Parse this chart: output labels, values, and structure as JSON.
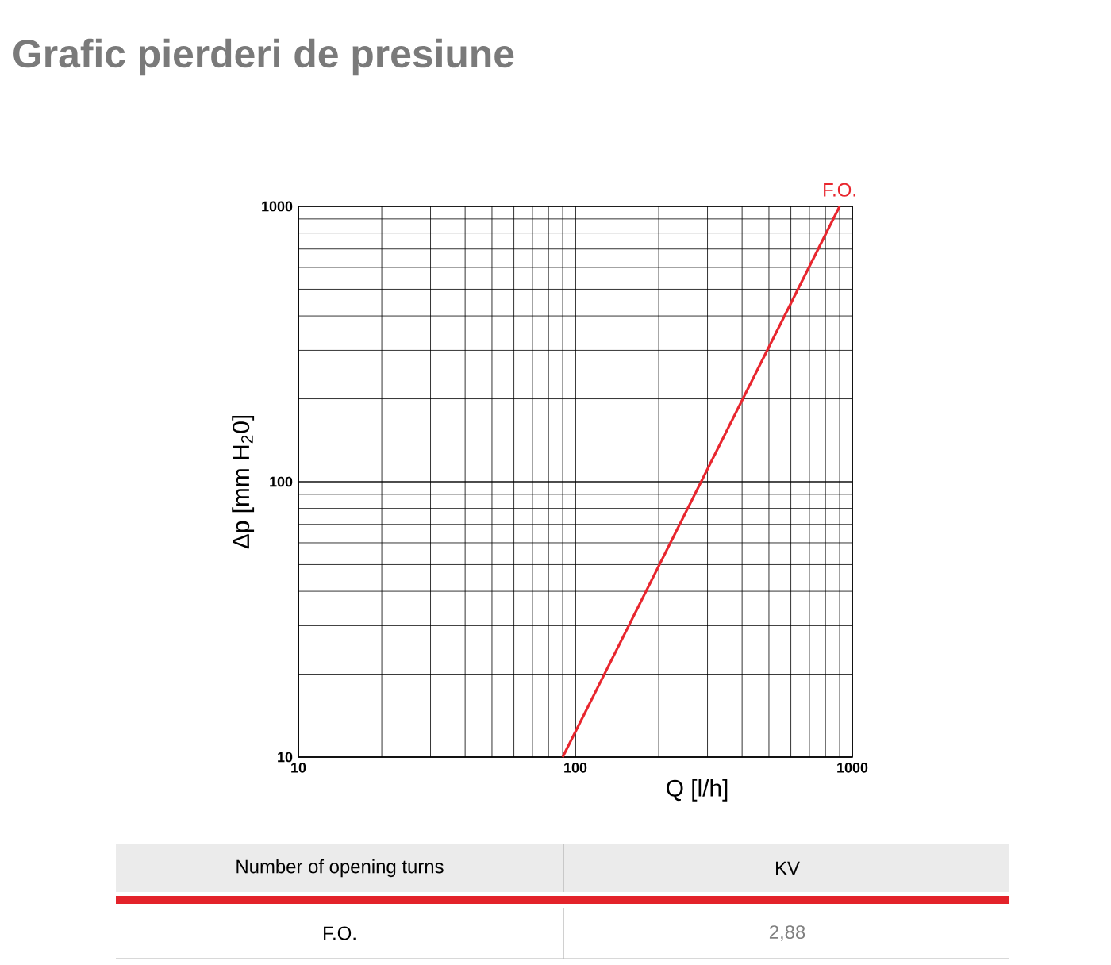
{
  "chart_data": {
    "type": "line",
    "title": "Grafic pierderi de presiune",
    "xlabel": "Q [l/h]",
    "ylabel": "Δp [mm H$_{2}$0]",
    "x": [
      90,
      900
    ],
    "series": [
      {
        "name": "F.O.",
        "color": "#e8262e",
        "values": [
          10,
          1000
        ]
      }
    ],
    "xlim": [
      10,
      1000
    ],
    "ylim": [
      10,
      1000
    ],
    "xticks": [
      10,
      100,
      1000
    ],
    "yticks": [
      10,
      100,
      1000
    ],
    "log": "xy",
    "grid": true,
    "annotations": [
      "Number of opening turns",
      "KV",
      "F.O.",
      "2,88"
    ]
  }
}
